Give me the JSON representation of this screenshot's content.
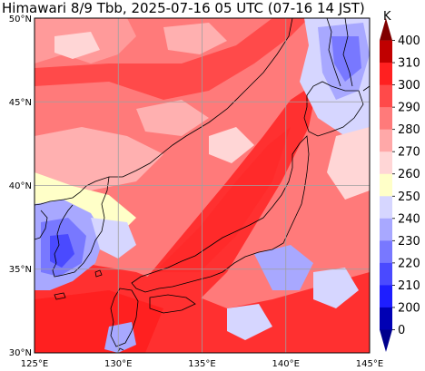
{
  "title": "Himawari 8/9 Tbb, 2025-07-16 05 UTC (07-16 14 JST)",
  "map": {
    "lon_range": [
      125,
      145
    ],
    "lat_range": [
      30,
      50
    ],
    "lon_ticks": [
      "125°E",
      "130°E",
      "135°E",
      "140°E",
      "145°E"
    ],
    "lat_ticks": [
      "50°N",
      "45°N",
      "40°N",
      "35°N",
      "30°N"
    ],
    "grid": true
  },
  "colorbar": {
    "unit": "K",
    "ticks": [
      "400",
      "310",
      "300",
      "290",
      "280",
      "270",
      "260",
      "250",
      "240",
      "230",
      "220",
      "210",
      "200",
      "0"
    ],
    "colors": [
      "#800000",
      "#c00000",
      "#ff2020",
      "#ff4a4a",
      "#ff7a7a",
      "#ffa8a8",
      "#ffd6d6",
      "#ffffc8",
      "#d6d6ff",
      "#a8a8ff",
      "#7878ff",
      "#4a4aff",
      "#1e1eff",
      "#0000b4",
      "#00008c"
    ]
  }
}
